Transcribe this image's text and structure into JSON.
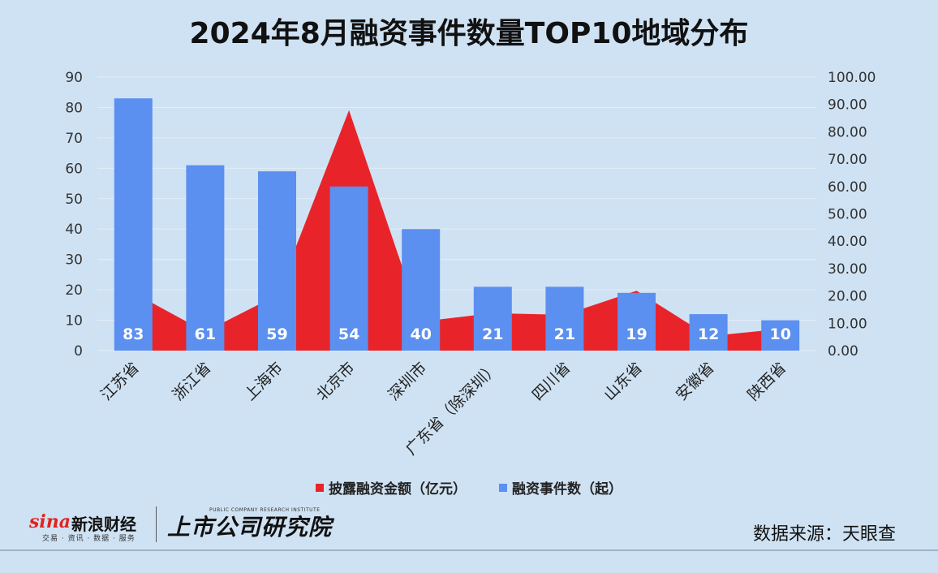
{
  "title": "2024年8月融资事件数量TOP10地域分布",
  "legend": {
    "amount_label": "披露融资金额（亿元）",
    "count_label": "融资事件数（起）"
  },
  "colors": {
    "amount": "#e8242a",
    "count": "#5b8ff0",
    "background": "#cfe2f3",
    "grid": "#e3edf6"
  },
  "chart_data": {
    "type": "bar",
    "categories": [
      "江苏省",
      "浙江省",
      "上海市",
      "北京市",
      "深圳市",
      "广东省（除深圳）",
      "四川省",
      "山东省",
      "安徽省",
      "陕西省"
    ],
    "series": [
      {
        "name": "融资事件数（起）",
        "type": "bar",
        "axis": "left",
        "values": [
          83,
          61,
          59,
          54,
          40,
          21,
          21,
          19,
          12,
          10
        ],
        "data_labels": [
          "83",
          "61",
          "59",
          "54",
          "40",
          "21",
          "21",
          "19",
          "12",
          "10"
        ]
      },
      {
        "name": "披露融资金额（亿元）",
        "type": "area",
        "axis": "right",
        "values": [
          21.2,
          6.9,
          20.3,
          87.9,
          10.6,
          13.7,
          13.1,
          21.9,
          5.3,
          7.9
        ]
      }
    ],
    "left_axis": {
      "ylim": [
        0,
        90
      ],
      "ticks": [
        "0",
        "10",
        "20",
        "30",
        "40",
        "50",
        "60",
        "70",
        "80",
        "90"
      ]
    },
    "right_axis": {
      "ylim": [
        0,
        100
      ],
      "ticks": [
        "0.00",
        "10.00",
        "20.00",
        "30.00",
        "40.00",
        "50.00",
        "60.00",
        "70.00",
        "80.00",
        "90.00",
        "100.00"
      ]
    },
    "grid": true,
    "legend_position": "bottom"
  },
  "footer": {
    "source": "数据来源：天眼查",
    "sina_word": "sina",
    "sina_cn": "新浪财经",
    "sina_sub": "交易 · 资讯 · 数据 · 服务",
    "inst_cn": "上市公司研究院",
    "inst_en": "PUBLIC COMPANY RESEARCH INSTITUTE"
  }
}
